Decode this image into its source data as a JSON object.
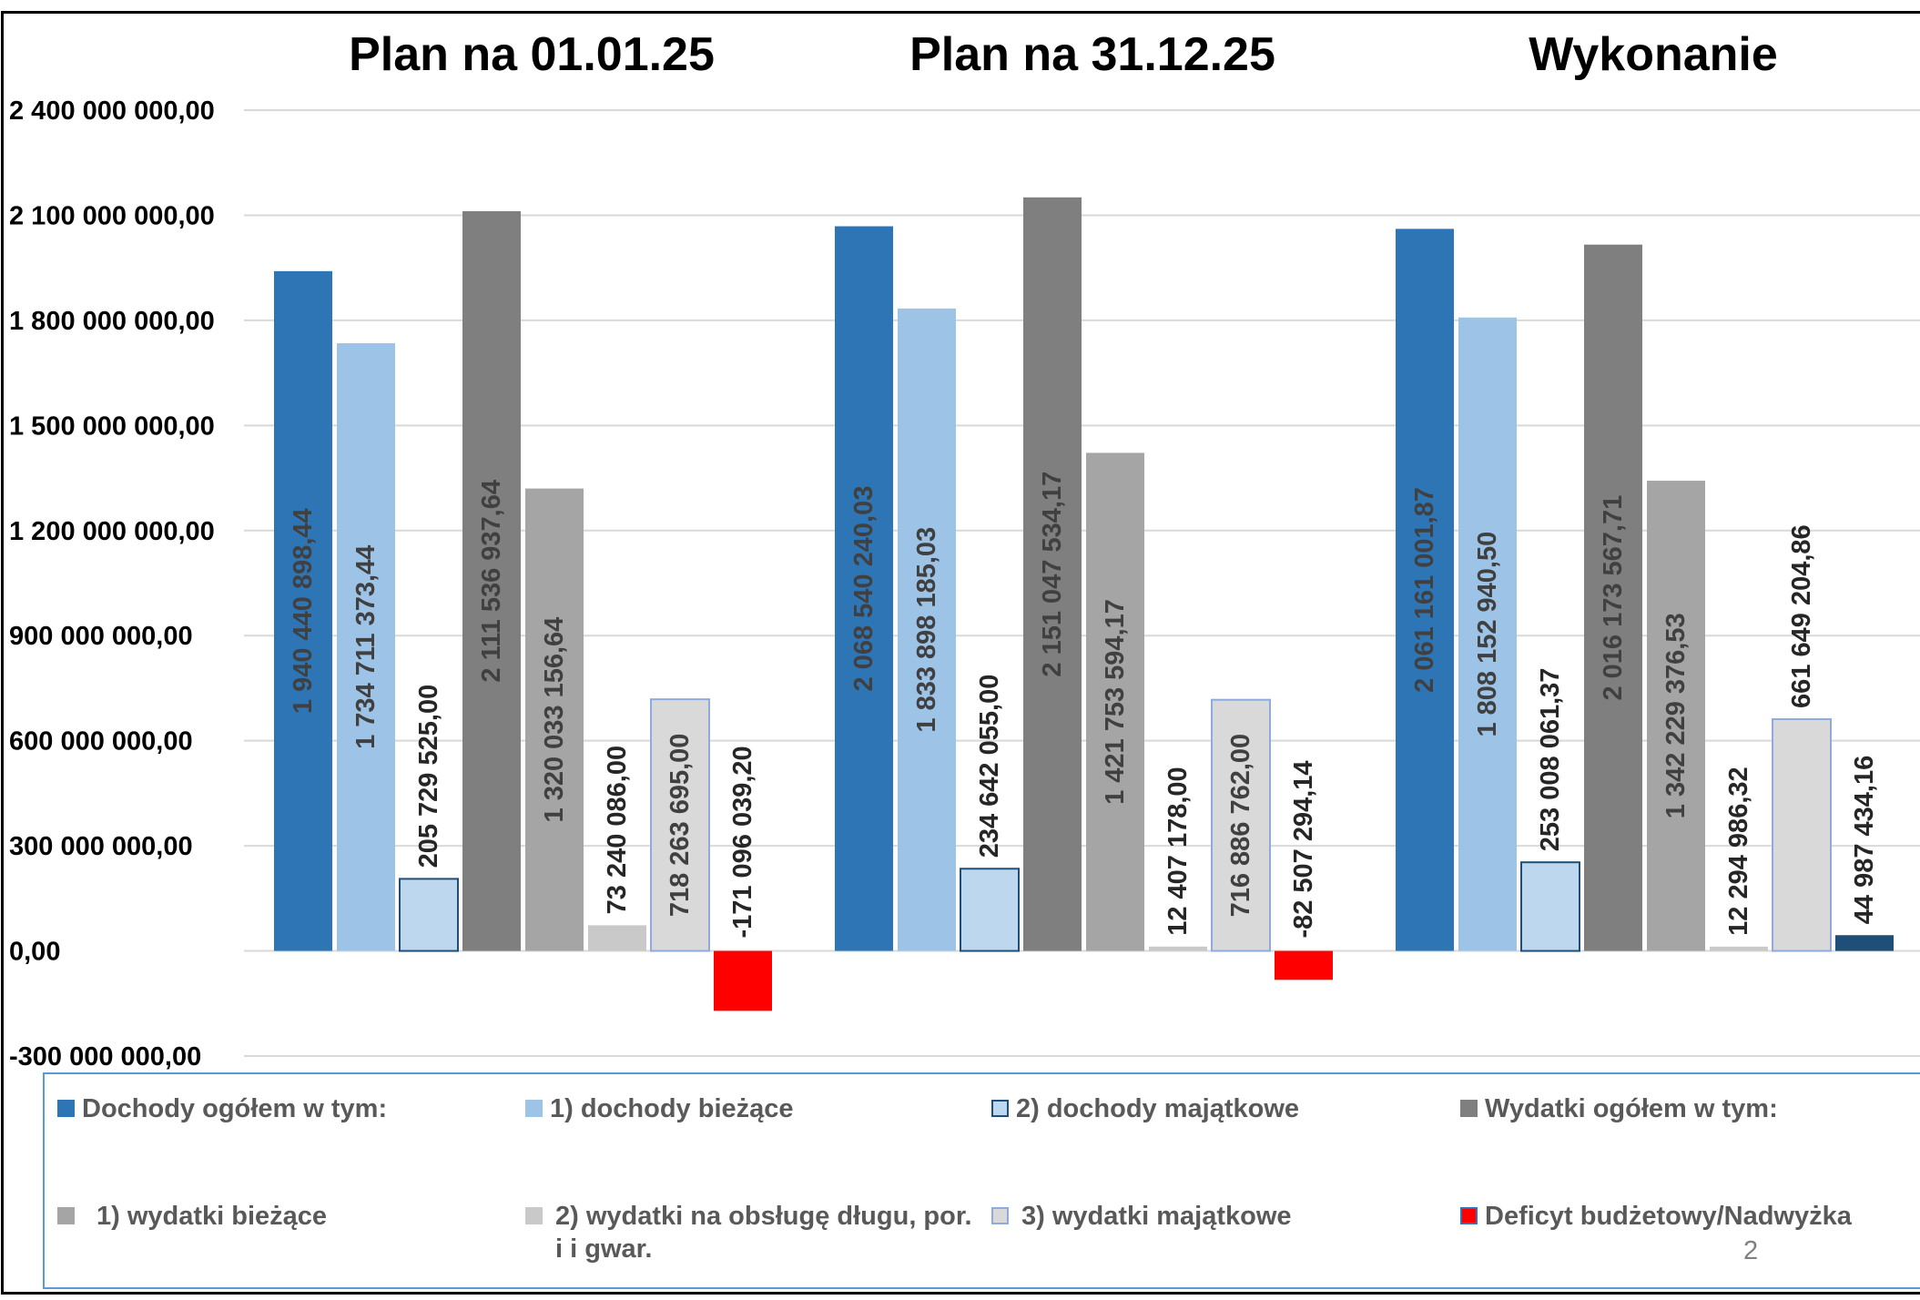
{
  "chart_data": {
    "type": "bar",
    "categories": [
      "Plan na 01.01.25",
      "Plan na 31.12.25",
      "Wykonanie"
    ],
    "ylim": [
      -300000000,
      2400000000
    ],
    "yticks": [
      {
        "value": 2400000000,
        "label": "2 400 000 000,00"
      },
      {
        "value": 2100000000,
        "label": "2 100 000 000,00"
      },
      {
        "value": 1800000000,
        "label": "1 800 000 000,00"
      },
      {
        "value": 1500000000,
        "label": "1 500 000 000,00"
      },
      {
        "value": 1200000000,
        "label": "1 200 000 000,00"
      },
      {
        "value": 900000000,
        "label": "900 000 000,00"
      },
      {
        "value": 600000000,
        "label": "600 000 000,00"
      },
      {
        "value": 300000000,
        "label": "300 000 000,00"
      },
      {
        "value": 0,
        "label": "0,00"
      },
      {
        "value": -300000000,
        "label": "-300 000 000,00"
      }
    ],
    "grid": true,
    "legend_position": "bottom",
    "series": [
      {
        "name": "Dochody ogółem w tym:",
        "color": "#2e75b6",
        "values": [
          1940440898.44,
          2068540240.03,
          2061161001.87
        ],
        "labels": [
          "1 940 440 898,44",
          "2 068 540 240,03",
          "2 061 161 001,87"
        ]
      },
      {
        "name": "1) dochody bieżące",
        "color": "#9dc3e6",
        "values": [
          1734711373.44,
          1833898185.03,
          1808152940.5
        ],
        "labels": [
          "1 734 711 373,44",
          "1 833 898 185,03",
          "1 808 152 940,50"
        ]
      },
      {
        "name": "2) dochody majątkowe",
        "color": "#bdd7ee",
        "border": "#1f4e79",
        "values": [
          205729525.0,
          234642055.0,
          253008061.37
        ],
        "labels": [
          "205 729 525,00",
          "234 642 055,00",
          "253 008 061,37"
        ]
      },
      {
        "name": "Wydatki ogółem w tym:",
        "color": "#7f7f7f",
        "values": [
          2111536937.64,
          2151047534.17,
          2016173567.71
        ],
        "labels": [
          "2 111 536 937,64",
          "2 151 047 534,17",
          "2 016 173 567,71"
        ]
      },
      {
        "name": "1) wydatki bieżące",
        "color": "#a5a5a5",
        "values": [
          1320033156.64,
          1421753594.17,
          1342229376.53
        ],
        "labels": [
          "1 320 033 156,64",
          "1 421 753 594,17",
          "1 342 229 376,53"
        ]
      },
      {
        "name": "2)  wydatki na obsługę długu, por. i i gwar.",
        "color": "#c9c9c9",
        "values": [
          73240086.0,
          12407178.0,
          12294986.32
        ],
        "labels": [
          "73 240 086,00",
          "12 407 178,00",
          "12 294 986,32"
        ]
      },
      {
        "name": "3) wydatki majątkowe",
        "color": "#d9d9d9",
        "border": "#8faadc",
        "values": [
          718263695.0,
          716886762.0,
          661649204.86
        ],
        "labels": [
          "718 263 695,00",
          "716 886 762,00",
          "661 649 204,86"
        ]
      },
      {
        "name": "Deficyt budżetowy/Nadwyżka",
        "color": "#ff0000",
        "positive_color": "#1f4e79",
        "values": [
          -171096039.2,
          -82507294.14,
          44987434.16
        ],
        "labels": [
          "-171 096 039,20",
          "-82 507 294,14",
          "44 987 434,16"
        ]
      }
    ]
  },
  "legend": {
    "items": [
      {
        "label": "Dochody ogółem w tym:",
        "color": "#2e75b6"
      },
      {
        "label": "1) dochody bieżące",
        "color": "#9dc3e6"
      },
      {
        "label": "2) dochody majątkowe",
        "color": "#bdd7ee",
        "border": "#1f4e79"
      },
      {
        "label": "Wydatki ogółem w tym:",
        "color": "#7f7f7f"
      },
      {
        "label": "1) wydatki bieżące",
        "color": "#a5a5a5"
      },
      {
        "label": "2)  wydatki na obsługę długu, por. i i gwar.",
        "color": "#c9c9c9"
      },
      {
        "label": "3) wydatki majątkowe",
        "color": "#d9d9d9",
        "border": "#8faadc"
      },
      {
        "label": "Deficyt budżetowy/Nadwyżka",
        "color": "#ff0000",
        "border": "#2e75b6"
      }
    ]
  },
  "page_number": "2"
}
